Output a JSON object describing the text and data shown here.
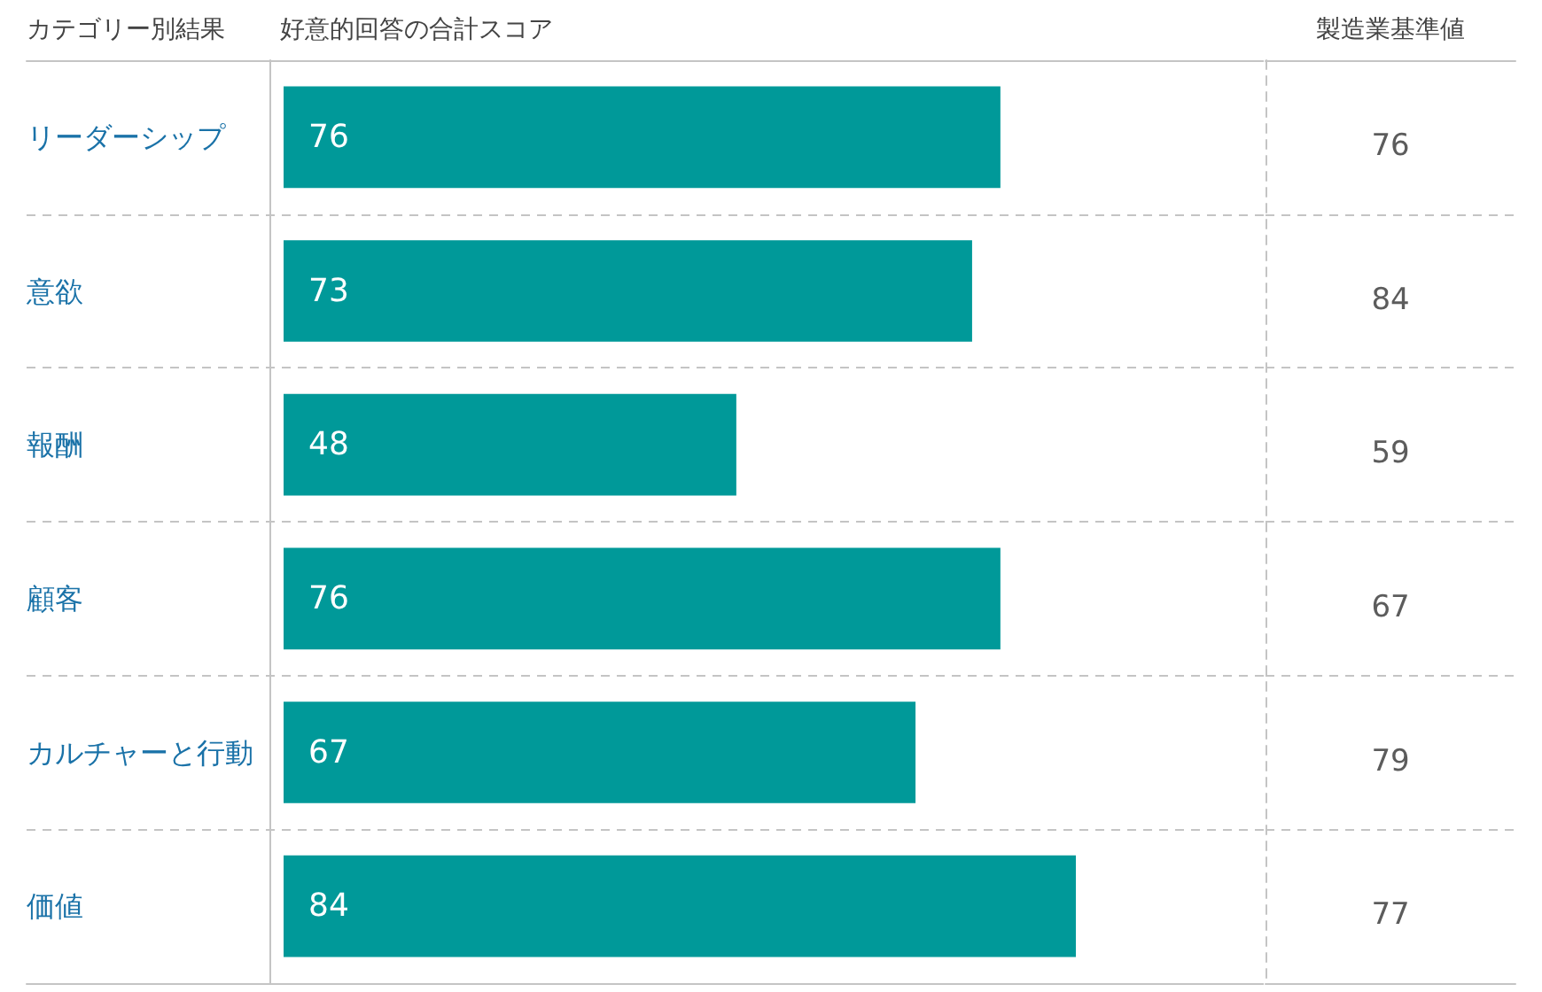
{
  "chart_data": [
    {
      "type": "bar",
      "orientation": "horizontal",
      "ylabel": "カテゴリー別結果",
      "xlabel": "好意的回答の合計スコア",
      "categories": [
        "リーダーシップ",
        "意欲",
        "報酬",
        "顧客",
        "カルチャーと行動",
        "価値"
      ],
      "values": [
        76,
        73,
        48,
        76,
        67,
        84
      ],
      "color": "#009999",
      "data_labels": true,
      "grid": "y",
      "tick_labels": "y"
    },
    {
      "type": "other",
      "title": "製造業基準値",
      "values": [
        76,
        84,
        59,
        67,
        79,
        77
      ],
      "color": "#333333",
      "data_labels": true
    }
  ]
}
